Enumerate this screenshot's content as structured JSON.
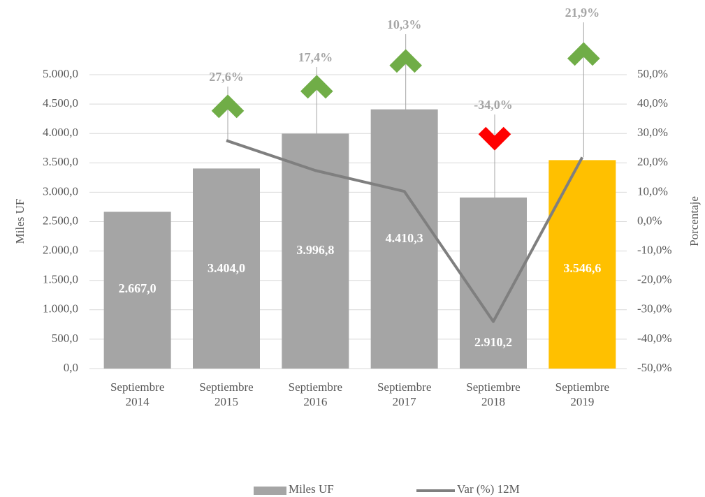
{
  "chart_data": {
    "type": "bar",
    "categories": [
      "Septiembre 2014",
      "Septiembre 2015",
      "Septiembre 2016",
      "Septiembre 2017",
      "Septiembre 2018",
      "Septiembre 2019"
    ],
    "series": [
      {
        "name": "Miles UF",
        "type": "bar",
        "color": "#a5a5a5",
        "colors": [
          "#a5a5a5",
          "#a5a5a5",
          "#a5a5a5",
          "#a5a5a5",
          "#a5a5a5",
          "#ffc000"
        ],
        "values": [
          2667.0,
          3404.0,
          3996.8,
          4410.3,
          2910.2,
          3546.6
        ],
        "value_labels": [
          "2.667,0",
          "3.404,0",
          "3.996,8",
          "4.410,3",
          "2.910,2",
          "3.546,6"
        ]
      },
      {
        "name": "Var (%) 12M",
        "type": "line",
        "axis": "y2",
        "color": "#7f7f7f",
        "values": [
          null,
          27.6,
          17.4,
          10.3,
          -34.0,
          21.9
        ],
        "value_labels": [
          null,
          "27,6%",
          "17,4%",
          "10,3%",
          "-34,0%",
          "21,9%"
        ]
      }
    ],
    "ylabel": "Miles UF",
    "y2label": "Porcentaje",
    "ylim": [
      0,
      5000
    ],
    "yticks": [
      {
        "value": 0,
        "label": "0,0"
      },
      {
        "value": 500,
        "label": "500,0"
      },
      {
        "value": 1000,
        "label": "1.000,0"
      },
      {
        "value": 1500,
        "label": "1.500,0"
      },
      {
        "value": 2000,
        "label": "2.000,0"
      },
      {
        "value": 2500,
        "label": "2.500,0"
      },
      {
        "value": 3000,
        "label": "3.000,0"
      },
      {
        "value": 3500,
        "label": "3.500,0"
      },
      {
        "value": 4000,
        "label": "4.000,0"
      },
      {
        "value": 4500,
        "label": "4.500,0"
      },
      {
        "value": 5000,
        "label": "5.000,0"
      }
    ],
    "y2lim": [
      -50,
      50
    ],
    "y2ticks": [
      {
        "value": -50,
        "label": "-50,0%"
      },
      {
        "value": -40,
        "label": "-40,0%"
      },
      {
        "value": -30,
        "label": "-30,0%"
      },
      {
        "value": -20,
        "label": "-20,0%"
      },
      {
        "value": -10,
        "label": "-10,0%"
      },
      {
        "value": 0,
        "label": "0,0%"
      },
      {
        "value": 10,
        "label": "10,0%"
      },
      {
        "value": 20,
        "label": "20,0%"
      },
      {
        "value": 30,
        "label": "30,0%"
      },
      {
        "value": 40,
        "label": "40,0%"
      },
      {
        "value": 50,
        "label": "50,0%"
      }
    ],
    "grid": true
  }
}
